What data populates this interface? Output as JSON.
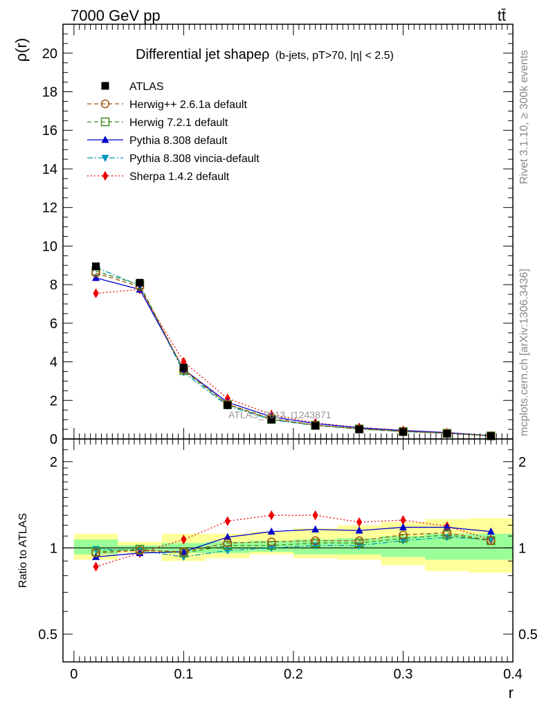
{
  "header": {
    "energy_label": "7000 GeV pp",
    "process_label": "tt̄"
  },
  "side_labels": {
    "rivet": "Rivet 3.1.10, ≥ 300k events",
    "mcplots": "mcplots.cern.ch [arXiv:1306.3436]"
  },
  "watermark": "ATLAS_2013_I1243871",
  "chart_data": [
    {
      "type": "line",
      "title_main": "Differential jet shapeρ",
      "title_sub": "(b-jets, pT>70, |η| < 2.5)",
      "ylabel": "ρ(r)",
      "xlabel": "r",
      "xlim": [
        -0.01,
        0.4
      ],
      "ylim": [
        0,
        21.5
      ],
      "yticks": [
        0,
        2,
        4,
        6,
        8,
        10,
        12,
        14,
        16,
        18,
        20
      ],
      "xticks": [
        0,
        0.1,
        0.2,
        0.3,
        0.4
      ],
      "x": [
        0.02,
        0.06,
        0.1,
        0.14,
        0.18,
        0.22,
        0.26,
        0.3,
        0.34,
        0.38
      ],
      "legend_position": "top-left",
      "series": [
        {
          "name": "ATLAS",
          "color": "#000000",
          "marker": "filled-square",
          "line": "none",
          "values": [
            8.95,
            8.1,
            3.7,
            1.75,
            1.0,
            0.68,
            0.5,
            0.36,
            0.27,
            0.15
          ]
        },
        {
          "name": "Herwig++ 2.6.1a default",
          "color": "#a0500a",
          "marker": "open-circle",
          "line": "dashed",
          "values": [
            8.6,
            7.9,
            3.6,
            1.8,
            1.05,
            0.72,
            0.53,
            0.4,
            0.3,
            0.16
          ]
        },
        {
          "name": "Herwig 7.2.1 default",
          "color": "#3a8a1a",
          "marker": "open-square",
          "line": "dashed",
          "values": [
            8.7,
            8.0,
            3.55,
            1.78,
            1.02,
            0.71,
            0.52,
            0.39,
            0.3,
            0.16
          ]
        },
        {
          "name": "Pythia 8.308 default",
          "color": "#0000cc",
          "marker": "filled-triangle-up",
          "line": "solid",
          "values": [
            8.35,
            7.75,
            3.6,
            1.9,
            1.15,
            0.8,
            0.58,
            0.44,
            0.33,
            0.17
          ]
        },
        {
          "name": "Pythia 8.308 vincia-default",
          "color": "#0099bb",
          "marker": "filled-triangle-down",
          "line": "dashdot",
          "values": [
            8.9,
            7.95,
            3.45,
            1.72,
            0.99,
            0.7,
            0.51,
            0.38,
            0.29,
            0.16
          ]
        },
        {
          "name": "Sherpa 1.4.2 default",
          "color": "#ee0000",
          "marker": "filled-diamond",
          "line": "dotted",
          "values": [
            7.55,
            7.75,
            4.0,
            2.1,
            1.27,
            0.83,
            0.6,
            0.45,
            0.32,
            0.16
          ]
        }
      ]
    },
    {
      "type": "line",
      "ylabel": "Ratio to ATLAS",
      "xlabel": "r",
      "xlim": [
        -0.01,
        0.4
      ],
      "ylim": [
        0.4,
        2.4
      ],
      "log_scale_y": true,
      "yticks": [
        0.5,
        1,
        2
      ],
      "xticks": [
        0,
        0.1,
        0.2,
        0.3,
        0.4
      ],
      "x": [
        0.02,
        0.06,
        0.1,
        0.14,
        0.18,
        0.22,
        0.26,
        0.3,
        0.34,
        0.38
      ],
      "bands": {
        "edges": [
          0.0,
          0.04,
          0.08,
          0.12,
          0.16,
          0.2,
          0.24,
          0.28,
          0.32,
          0.36,
          0.4
        ],
        "inner_lo": [
          0.95,
          0.98,
          0.96,
          0.96,
          0.97,
          0.95,
          0.95,
          0.93,
          0.91,
          0.91
        ],
        "inner_hi": [
          1.07,
          1.02,
          1.04,
          1.05,
          1.06,
          1.07,
          1.08,
          1.1,
          1.12,
          1.12
        ],
        "outer_lo": [
          0.91,
          0.96,
          0.9,
          0.92,
          0.95,
          0.92,
          0.91,
          0.87,
          0.83,
          0.82
        ],
        "outer_hi": [
          1.12,
          1.05,
          1.12,
          1.12,
          1.14,
          1.17,
          1.2,
          1.23,
          1.26,
          1.27
        ],
        "inner_color": "#99ff99",
        "outer_color": "#ffff99"
      },
      "series": [
        {
          "name": "Herwig++ 2.6.1a default",
          "color": "#a0500a",
          "marker": "open-circle",
          "line": "dashed",
          "values": [
            0.96,
            0.98,
            0.97,
            1.04,
            1.05,
            1.06,
            1.06,
            1.11,
            1.13,
            1.06
          ]
        },
        {
          "name": "Herwig 7.2.1 default",
          "color": "#3a8a1a",
          "marker": "open-square",
          "line": "dashed",
          "values": [
            0.97,
            0.99,
            0.96,
            1.02,
            1.02,
            1.04,
            1.04,
            1.08,
            1.11,
            1.06
          ]
        },
        {
          "name": "Pythia 8.308 default",
          "color": "#0000cc",
          "marker": "filled-triangle-up",
          "line": "solid",
          "values": [
            0.93,
            0.96,
            0.97,
            1.09,
            1.14,
            1.16,
            1.15,
            1.18,
            1.18,
            1.14
          ]
        },
        {
          "name": "Pythia 8.308 vincia-default",
          "color": "#0099bb",
          "marker": "filled-triangle-down",
          "line": "dashdot",
          "values": [
            0.99,
            0.98,
            0.93,
            0.98,
            1.0,
            1.02,
            1.02,
            1.06,
            1.09,
            1.07
          ]
        },
        {
          "name": "Sherpa 1.4.2 default",
          "color": "#ee0000",
          "marker": "filled-diamond",
          "line": "dotted",
          "values": [
            0.86,
            0.96,
            1.07,
            1.24,
            1.3,
            1.3,
            1.23,
            1.25,
            1.19,
            1.07
          ]
        }
      ]
    }
  ]
}
